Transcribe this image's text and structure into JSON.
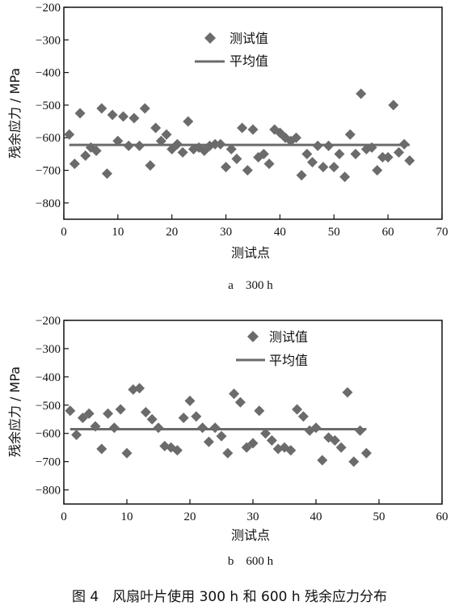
{
  "caption": "图 4　风扇叶片使用 300 h 和 600 h 残余应力分布",
  "legend": {
    "points": "测试值",
    "mean": "平均值"
  },
  "colors": {
    "marker": "#6b6b6b",
    "mean_line": "#6b6b6b"
  },
  "chart_data": [
    {
      "type": "scatter",
      "sublabel": "a　300 h",
      "xlabel": "测试点",
      "ylabel": "残余应力 / MPa",
      "xlim": [
        0,
        70
      ],
      "ylim": [
        -850,
        -200
      ],
      "xticks": [
        0,
        10,
        20,
        30,
        40,
        50,
        60,
        70
      ],
      "yticks": [
        -200,
        -300,
        -400,
        -500,
        -600,
        -700,
        -800
      ],
      "mean": -622,
      "series": [
        {
          "name": "测试值",
          "x": [
            1,
            2,
            3,
            4,
            5,
            6,
            7,
            8,
            9,
            10,
            11,
            12,
            13,
            14,
            15,
            16,
            17,
            18,
            19,
            20,
            21,
            22,
            23,
            24,
            25,
            26,
            27,
            28,
            29,
            30,
            31,
            32,
            33,
            34,
            35,
            36,
            37,
            38,
            39,
            40,
            41,
            42,
            43,
            44,
            45,
            46,
            47,
            48,
            49,
            50,
            51,
            52,
            53,
            54,
            55,
            56,
            57,
            58,
            59,
            60,
            61,
            62,
            63,
            64
          ],
          "y": [
            -590,
            -680,
            -525,
            -655,
            -630,
            -640,
            -510,
            -710,
            -530,
            -610,
            -535,
            -625,
            -540,
            -625,
            -510,
            -685,
            -570,
            -610,
            -590,
            -635,
            -620,
            -645,
            -550,
            -635,
            -630,
            -640,
            -625,
            -620,
            -620,
            -690,
            -635,
            -665,
            -570,
            -700,
            -575,
            -660,
            -650,
            -680,
            -575,
            -585,
            -600,
            -610,
            -600,
            -715,
            -650,
            -675,
            -625,
            -690,
            -625,
            -690,
            -650,
            -720,
            -590,
            -650,
            -465,
            -635,
            -630,
            -700,
            -660,
            -660,
            -500,
            -645,
            -620,
            -670
          ]
        }
      ]
    },
    {
      "type": "scatter",
      "sublabel": "b　600 h",
      "xlabel": "测试点",
      "ylabel": "残余应力 / MPa",
      "xlim": [
        0,
        60
      ],
      "ylim": [
        -850,
        -200
      ],
      "xticks": [
        0,
        10,
        20,
        30,
        40,
        50,
        60
      ],
      "yticks": [
        -200,
        -300,
        -400,
        -500,
        -600,
        -700,
        -800
      ],
      "mean": -585,
      "series": [
        {
          "name": "测试值",
          "x": [
            1,
            2,
            3,
            4,
            5,
            6,
            7,
            8,
            9,
            10,
            11,
            12,
            13,
            14,
            15,
            16,
            17,
            18,
            19,
            20,
            21,
            22,
            23,
            24,
            25,
            26,
            27,
            28,
            29,
            30,
            31,
            32,
            33,
            34,
            35,
            36,
            37,
            38,
            39,
            40,
            41,
            42,
            43,
            44,
            45,
            46,
            47,
            48
          ],
          "y": [
            -520,
            -605,
            -545,
            -530,
            -575,
            -655,
            -530,
            -580,
            -515,
            -670,
            -445,
            -440,
            -525,
            -550,
            -580,
            -645,
            -650,
            -660,
            -545,
            -485,
            -540,
            -580,
            -630,
            -580,
            -610,
            -670,
            -460,
            -490,
            -650,
            -635,
            -520,
            -600,
            -625,
            -655,
            -650,
            -660,
            -515,
            -540,
            -590,
            -580,
            -695,
            -615,
            -625,
            -650,
            -455,
            -700,
            -590,
            -670
          ]
        }
      ]
    }
  ]
}
